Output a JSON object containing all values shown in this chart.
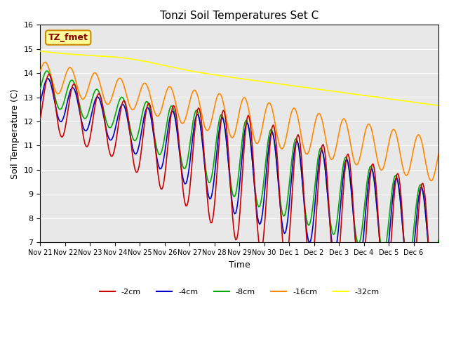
{
  "title": "Tonzi Soil Temperatures Set C",
  "xlabel": "Time",
  "ylabel": "Soil Temperature (C)",
  "ylim": [
    7.0,
    16.0
  ],
  "yticks": [
    7.0,
    8.0,
    9.0,
    10.0,
    11.0,
    12.0,
    13.0,
    14.0,
    15.0,
    16.0
  ],
  "colors": {
    "-2cm": "#cc0000",
    "-4cm": "#0000cc",
    "-8cm": "#00aa00",
    "-16cm": "#ff8800",
    "-32cm": "#ffff00"
  },
  "legend_label": "TZ_fmet",
  "legend_box_color": "#ffff99",
  "legend_box_edge": "#cc8800",
  "legend_text_color": "#880000",
  "bg_color": "#e8e8e8",
  "plot_bg_color": "#e8e8e8",
  "n_days": 16,
  "start_day": 21,
  "xtick_labels": [
    "Nov 21",
    "Nov 22",
    "Nov 23",
    "Nov 24",
    "Nov 25",
    "Nov 26",
    "Nov 27",
    "Nov 28",
    "Nov 29",
    "Nov 30",
    "Dec 1",
    "Dec 2",
    "Dec 3",
    "Dec 4",
    "Dec 5",
    "Dec 6"
  ]
}
